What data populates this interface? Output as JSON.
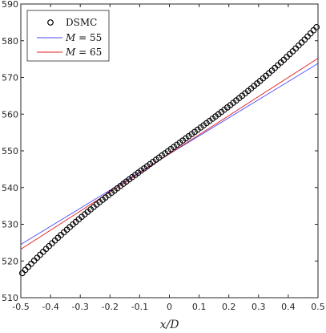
{
  "chart_data": {
    "type": "line",
    "title": "",
    "xlabel": "x/D",
    "ylabel": "",
    "xlim": [
      -0.5,
      0.5
    ],
    "ylim": [
      510,
      590
    ],
    "xticks": [
      -0.5,
      -0.4,
      -0.3,
      -0.2,
      -0.1,
      0,
      0.1,
      0.2,
      0.3,
      0.4,
      0.5
    ],
    "xtick_labels": [
      "-0.5",
      "-0.4",
      "-0.3",
      "-0.2",
      "-0.1",
      "0",
      "0.1",
      "0.2",
      "0.3",
      "0.4",
      "0.5"
    ],
    "yticks": [
      510,
      520,
      530,
      540,
      550,
      560,
      570,
      580,
      590
    ],
    "ytick_labels": [
      "510",
      "520",
      "530",
      "540",
      "550",
      "560",
      "570",
      "580",
      "590"
    ],
    "grid": false,
    "legend_position": "top-left",
    "series": [
      {
        "name": "DSMC",
        "style": "markers",
        "marker": "circle",
        "color": "#000000",
        "x_start": -0.495,
        "x_end": 0.495,
        "count": 100,
        "y_start": 516.5,
        "y_mid": 550.2,
        "y_end": 583.5
      },
      {
        "name": "M = 55",
        "name_math": "M",
        "name_rest": " = 55",
        "style": "line",
        "color": "#4a4aff",
        "x": [
          -0.5,
          0.5
        ],
        "y": [
          524.5,
          573.8
        ]
      },
      {
        "name": "M = 65",
        "name_math": "M",
        "name_rest": " = 65",
        "style": "line",
        "color": "#e02020",
        "x": [
          -0.5,
          0.5
        ],
        "y": [
          523.2,
          575.2
        ]
      }
    ]
  }
}
